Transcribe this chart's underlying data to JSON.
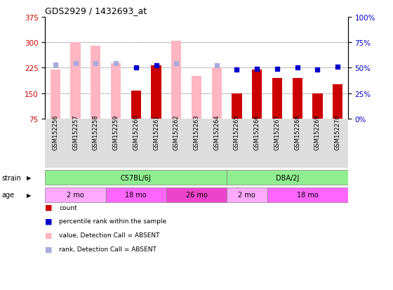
{
  "title": "GDS2929 / 1432693_at",
  "samples": [
    "GSM152256",
    "GSM152257",
    "GSM152258",
    "GSM152259",
    "GSM152260",
    "GSM152261",
    "GSM152262",
    "GSM152263",
    "GSM152264",
    "GSM152265",
    "GSM152266",
    "GSM152267",
    "GSM152268",
    "GSM152269",
    "GSM152270"
  ],
  "count_values": [
    null,
    null,
    null,
    null,
    158,
    232,
    null,
    null,
    null,
    148,
    220,
    195,
    195,
    150,
    175
  ],
  "count_absent": [
    220,
    300,
    290,
    237,
    null,
    null,
    305,
    200,
    225,
    null,
    null,
    null,
    null,
    null,
    null
  ],
  "rank_values": [
    null,
    null,
    null,
    null,
    50,
    52,
    null,
    null,
    null,
    48,
    49,
    49,
    50,
    48,
    51
  ],
  "rank_absent": [
    53,
    54,
    54,
    54,
    null,
    null,
    54,
    null,
    52,
    null,
    null,
    null,
    null,
    null,
    null
  ],
  "ylim_left": [
    75,
    375
  ],
  "ylim_right": [
    0,
    100
  ],
  "yticks_left": [
    75,
    150,
    225,
    300,
    375
  ],
  "yticks_right": [
    0,
    25,
    50,
    75,
    100
  ],
  "strain_groups": [
    {
      "label": "C57BL/6J",
      "start": 0,
      "end": 9,
      "color": "#90EE90"
    },
    {
      "label": "DBA/2J",
      "start": 9,
      "end": 15,
      "color": "#90EE90"
    }
  ],
  "age_groups": [
    {
      "label": "2 mo",
      "start": 0,
      "end": 3,
      "color": "#FFAAFF"
    },
    {
      "label": "18 mo",
      "start": 3,
      "end": 6,
      "color": "#FF66FF"
    },
    {
      "label": "26 mo",
      "start": 6,
      "end": 9,
      "color": "#EE44CC"
    },
    {
      "label": "2 mo",
      "start": 9,
      "end": 11,
      "color": "#FFAAFF"
    },
    {
      "label": "18 mo",
      "start": 11,
      "end": 15,
      "color": "#FF66FF"
    }
  ],
  "count_color": "#CC0000",
  "count_absent_color": "#FFB6C1",
  "rank_color": "#0000CC",
  "rank_absent_color": "#AAAADD",
  "tick_label_color_left": "#CC0000",
  "tick_label_color_right": "#0000CC"
}
